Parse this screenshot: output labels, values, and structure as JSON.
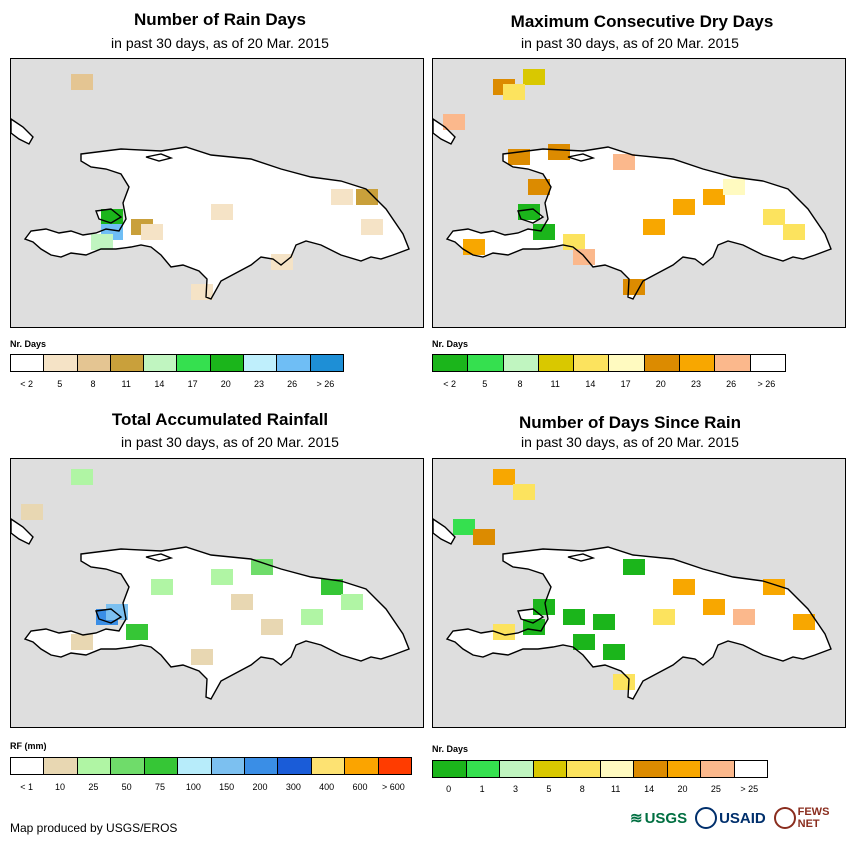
{
  "panels": [
    {
      "id": "rain-days",
      "title": "Number of Rain Days",
      "subtitle": "in past 30 days, as of 20 Mar. 2015",
      "legend_title": "Nr. Days",
      "legend_colors": [
        "#ffffff",
        "#f5e3c6",
        "#e4c592",
        "#c9a03b",
        "#c0f5c0",
        "#35e04f",
        "#1bb51b",
        "#bfeffc",
        "#6fbef5",
        "#1e8fd6"
      ],
      "legend_labels": [
        "< 2",
        "5",
        "8",
        "11",
        "14",
        "17",
        "20",
        "23",
        "26",
        "> 26"
      ]
    },
    {
      "id": "max-dry-days",
      "title": "Maximum Consecutive Dry Days",
      "subtitle": "in past 30 days, as of 20 Mar. 2015",
      "legend_title": "Nr. Days",
      "legend_colors": [
        "#1bb51b",
        "#35e04f",
        "#c0f5c0",
        "#d9c800",
        "#fce35e",
        "#fffac0",
        "#dc8b00",
        "#f8a700",
        "#fbb88c",
        "#ffffff"
      ],
      "legend_labels": [
        "< 2",
        "5",
        "8",
        "11",
        "14",
        "17",
        "20",
        "23",
        "26",
        "> 26"
      ]
    },
    {
      "id": "total-rainfall",
      "title": "Total Accumulated Rainfall",
      "subtitle": "in past 30 days, as of 20 Mar. 2015",
      "legend_title": "RF (mm)",
      "legend_colors": [
        "#ffffff",
        "#e8d7b2",
        "#b0f5a4",
        "#6fdc6a",
        "#36c636",
        "#b7ecfa",
        "#7cc0f0",
        "#3a8ee6",
        "#1a5cd8",
        "#fde272",
        "#fba400",
        "#ff3c00"
      ],
      "legend_labels": [
        "< 1",
        "10",
        "25",
        "50",
        "75",
        "100",
        "150",
        "200",
        "300",
        "400",
        "600",
        "> 600"
      ]
    },
    {
      "id": "days-since-rain",
      "title": "Number of Days Since Rain",
      "subtitle": "in past 30 days, as of 20 Mar. 2015",
      "legend_title": "Nr. Days",
      "legend_colors": [
        "#1bb51b",
        "#35e04f",
        "#c0f5c0",
        "#d9c800",
        "#fce35e",
        "#fffac0",
        "#dc8b00",
        "#f8a700",
        "#fbb88c",
        "#ffffff"
      ],
      "legend_labels": [
        "0",
        "1",
        "3",
        "5",
        "8",
        "11",
        "14",
        "20",
        "25",
        "> 25"
      ]
    }
  ],
  "footer": {
    "credit": "Map produced by USGS/EROS"
  },
  "logos": {
    "usgs": "USGS",
    "usaid": "USAID",
    "fews": "FEWS NET"
  },
  "colors": {
    "map_bg": "#dedede",
    "land_default": "#ffffff",
    "outline": "#000000"
  }
}
